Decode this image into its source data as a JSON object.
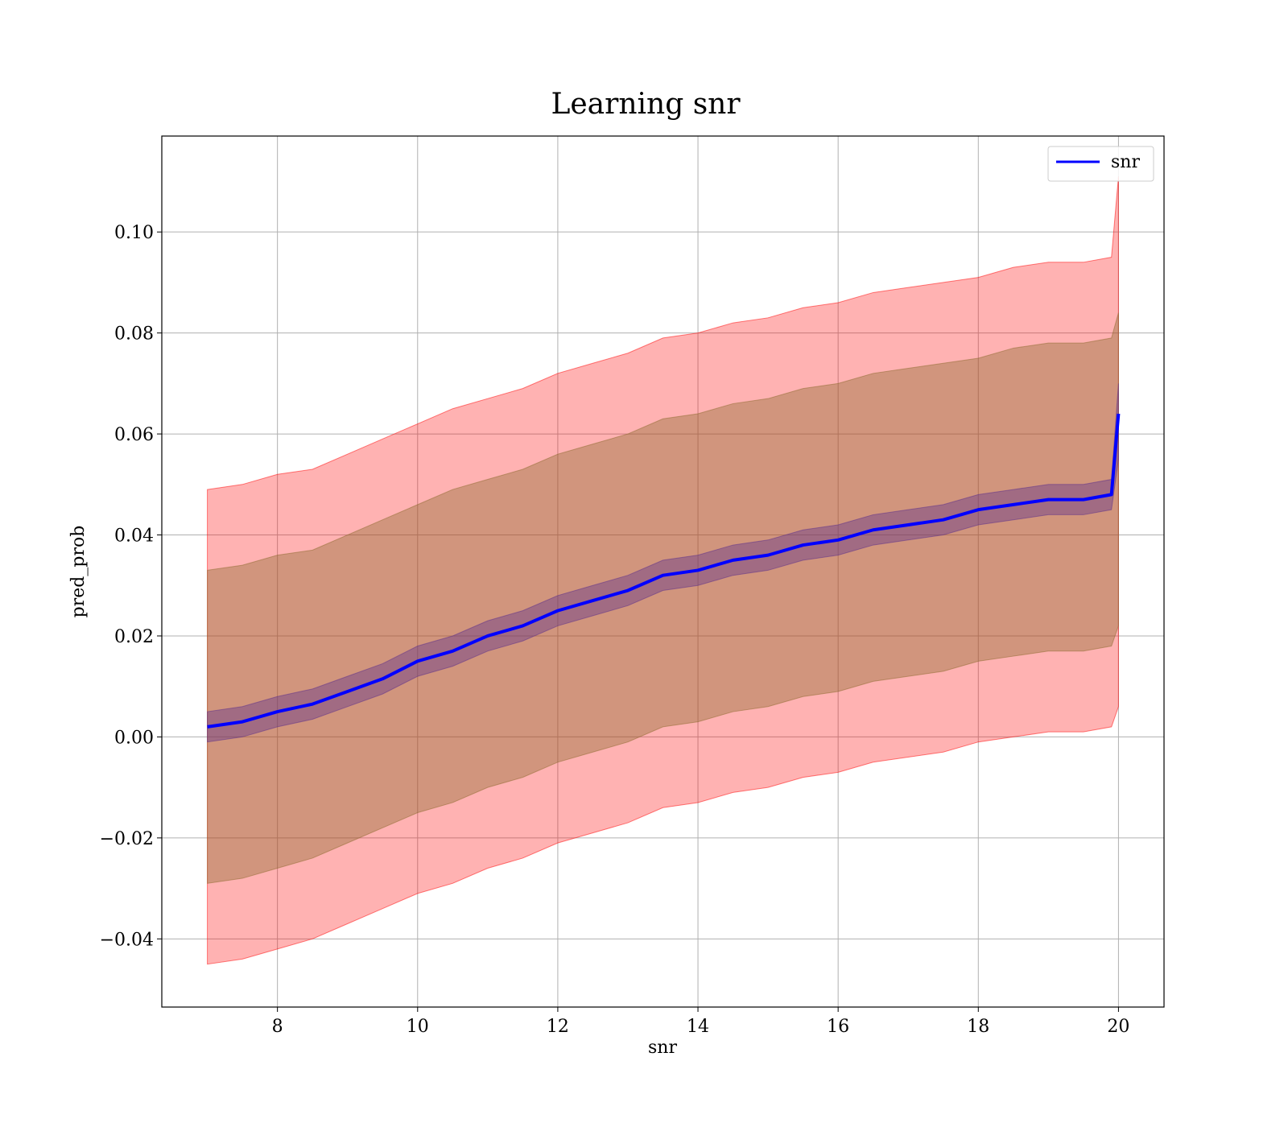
{
  "chart_data": {
    "type": "line",
    "title": "Learning snr",
    "xlabel": "snr",
    "ylabel": "pred_prob",
    "xlim": [
      6.35,
      20.65
    ],
    "ylim": [
      -0.0535,
      0.119
    ],
    "xticks": [
      8,
      10,
      12,
      14,
      16,
      18,
      20
    ],
    "xtick_labels": [
      "8",
      "10",
      "12",
      "14",
      "16",
      "18",
      "20"
    ],
    "yticks": [
      -0.04,
      -0.02,
      0.0,
      0.02,
      0.04,
      0.06,
      0.08,
      0.1
    ],
    "ytick_labels": [
      "−0.04",
      "−0.02",
      "0.00",
      "0.02",
      "0.04",
      "0.06",
      "0.08",
      "0.10"
    ],
    "grid": true,
    "legend": {
      "position": "top-right",
      "entries": [
        "snr"
      ]
    },
    "colors": {
      "line": "#0000ff",
      "band_outer": "#ff0000",
      "band_middle": "#8b6a2e",
      "band_inner": "#5a2d8c"
    },
    "series": [
      {
        "name": "snr",
        "x": [
          7,
          7.5,
          8,
          8.5,
          9,
          9.5,
          10,
          10.5,
          11,
          11.5,
          12,
          12.5,
          13,
          13.5,
          14,
          14.5,
          15,
          15.5,
          16,
          16.5,
          17,
          17.5,
          18,
          18.5,
          19,
          19.5,
          19.9,
          20
        ],
        "y": [
          0.002,
          0.003,
          0.005,
          0.0065,
          0.009,
          0.0115,
          0.015,
          0.017,
          0.02,
          0.022,
          0.025,
          0.027,
          0.029,
          0.032,
          0.033,
          0.035,
          0.036,
          0.038,
          0.039,
          0.041,
          0.042,
          0.043,
          0.045,
          0.046,
          0.047,
          0.047,
          0.048,
          0.064
        ]
      }
    ],
    "bands": [
      {
        "x": [
          7,
          7.5,
          8,
          8.5,
          9,
          9.5,
          10,
          10.5,
          11,
          11.5,
          12,
          12.5,
          13,
          13.5,
          14,
          14.5,
          15,
          15.5,
          16,
          16.5,
          17,
          17.5,
          18,
          18.5,
          19,
          19.5,
          19.9,
          20
        ],
        "lower": [
          -0.045,
          -0.044,
          -0.042,
          -0.04,
          -0.037,
          -0.034,
          -0.031,
          -0.029,
          -0.026,
          -0.024,
          -0.021,
          -0.019,
          -0.017,
          -0.014,
          -0.013,
          -0.011,
          -0.01,
          -0.008,
          -0.007,
          -0.005,
          -0.004,
          -0.003,
          -0.001,
          0.0,
          0.001,
          0.001,
          0.002,
          0.006
        ],
        "upper": [
          0.049,
          0.05,
          0.052,
          0.053,
          0.056,
          0.059,
          0.062,
          0.065,
          0.067,
          0.069,
          0.072,
          0.074,
          0.076,
          0.079,
          0.08,
          0.082,
          0.083,
          0.085,
          0.086,
          0.088,
          0.089,
          0.09,
          0.091,
          0.093,
          0.094,
          0.094,
          0.095,
          0.111
        ]
      },
      {
        "x": [
          7,
          7.5,
          8,
          8.5,
          9,
          9.5,
          10,
          10.5,
          11,
          11.5,
          12,
          12.5,
          13,
          13.5,
          14,
          14.5,
          15,
          15.5,
          16,
          16.5,
          17,
          17.5,
          18,
          18.5,
          19,
          19.5,
          19.9,
          20
        ],
        "lower": [
          -0.029,
          -0.028,
          -0.026,
          -0.024,
          -0.021,
          -0.018,
          -0.015,
          -0.013,
          -0.01,
          -0.008,
          -0.005,
          -0.003,
          -0.001,
          0.002,
          0.003,
          0.005,
          0.006,
          0.008,
          0.009,
          0.011,
          0.012,
          0.013,
          0.015,
          0.016,
          0.017,
          0.017,
          0.018,
          0.022
        ],
        "upper": [
          0.033,
          0.034,
          0.036,
          0.037,
          0.04,
          0.043,
          0.046,
          0.049,
          0.051,
          0.053,
          0.056,
          0.058,
          0.06,
          0.063,
          0.064,
          0.066,
          0.067,
          0.069,
          0.07,
          0.072,
          0.073,
          0.074,
          0.075,
          0.077,
          0.078,
          0.078,
          0.079,
          0.084
        ]
      },
      {
        "x": [
          7,
          7.5,
          8,
          8.5,
          9,
          9.5,
          10,
          10.5,
          11,
          11.5,
          12,
          12.5,
          13,
          13.5,
          14,
          14.5,
          15,
          15.5,
          16,
          16.5,
          17,
          17.5,
          18,
          18.5,
          19,
          19.5,
          19.9,
          20
        ],
        "lower": [
          -0.001,
          0.0,
          0.002,
          0.0035,
          0.006,
          0.0085,
          0.012,
          0.014,
          0.017,
          0.019,
          0.022,
          0.024,
          0.026,
          0.029,
          0.03,
          0.032,
          0.033,
          0.035,
          0.036,
          0.038,
          0.039,
          0.04,
          0.042,
          0.043,
          0.044,
          0.044,
          0.045,
          0.055
        ],
        "upper": [
          0.005,
          0.006,
          0.008,
          0.0095,
          0.012,
          0.0145,
          0.018,
          0.02,
          0.023,
          0.025,
          0.028,
          0.03,
          0.032,
          0.035,
          0.036,
          0.038,
          0.039,
          0.041,
          0.042,
          0.044,
          0.045,
          0.046,
          0.048,
          0.049,
          0.05,
          0.05,
          0.051,
          0.07
        ]
      }
    ]
  }
}
